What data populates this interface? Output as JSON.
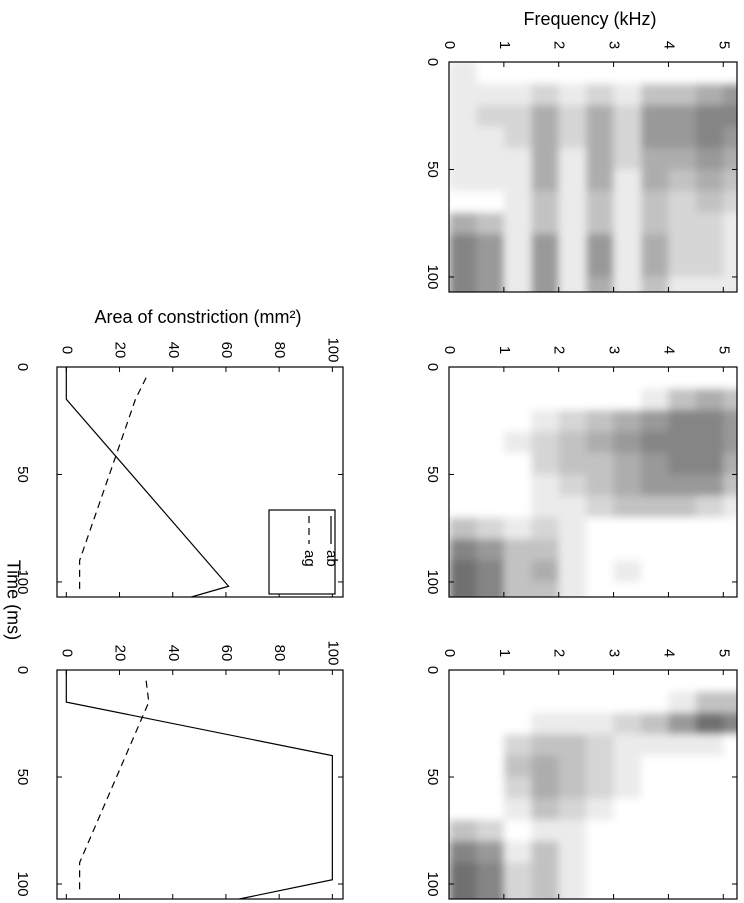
{
  "chart_data": [
    {
      "type": "heatmap",
      "ylabel": "Frequency (kHz)",
      "x": [
        5,
        15,
        25,
        35,
        45,
        55,
        65,
        75,
        85,
        95,
        105
      ],
      "y": [
        0.25,
        0.75,
        1.25,
        1.75,
        2.25,
        2.75,
        3.25,
        3.75,
        4.25,
        4.75,
        5.25
      ],
      "z": [
        [
          0.1,
          0,
          0,
          0,
          0,
          0,
          0,
          0,
          0,
          0,
          0
        ],
        [
          0.1,
          0.1,
          0.1,
          0.2,
          0.1,
          0.2,
          0.1,
          0.3,
          0.3,
          0.4,
          0.5
        ],
        [
          0.1,
          0.2,
          0.2,
          0.4,
          0.2,
          0.4,
          0.2,
          0.5,
          0.5,
          0.6,
          0.6
        ],
        [
          0.1,
          0.1,
          0.2,
          0.4,
          0.2,
          0.4,
          0.2,
          0.5,
          0.5,
          0.6,
          0.5
        ],
        [
          0.1,
          0.1,
          0.1,
          0.4,
          0.1,
          0.4,
          0.2,
          0.4,
          0.4,
          0.5,
          0.4
        ],
        [
          0.1,
          0.1,
          0.1,
          0.4,
          0.1,
          0.4,
          0.1,
          0.4,
          0.3,
          0.4,
          0.3
        ],
        [
          0,
          0,
          0.1,
          0.3,
          0.1,
          0.3,
          0.1,
          0.3,
          0.2,
          0.3,
          0.2
        ],
        [
          0.4,
          0.3,
          0.1,
          0.3,
          0.1,
          0.3,
          0.1,
          0.3,
          0.2,
          0.2,
          0.1
        ],
        [
          0.6,
          0.5,
          0.1,
          0.5,
          0.1,
          0.5,
          0.1,
          0.4,
          0.2,
          0.2,
          0.1
        ],
        [
          0.6,
          0.5,
          0.1,
          0.5,
          0.1,
          0.5,
          0.1,
          0.4,
          0.2,
          0.2,
          0.1
        ],
        [
          0.6,
          0.5,
          0.1,
          0.5,
          0.1,
          0.4,
          0.1,
          0.3,
          0.1,
          0.1,
          0.1
        ]
      ],
      "xlim": [
        0,
        107
      ],
      "xticks": [
        0,
        50,
        100
      ],
      "ylim": [
        0,
        5.25
      ],
      "yticks": [
        0,
        1,
        2,
        3,
        4,
        5
      ]
    },
    {
      "type": "heatmap",
      "x": [
        5,
        15,
        25,
        35,
        45,
        55,
        65,
        75,
        85,
        95,
        105
      ],
      "y": [
        0.25,
        0.75,
        1.25,
        1.75,
        2.25,
        2.75,
        3.25,
        3.75,
        4.25,
        4.75,
        5.25
      ],
      "z": [
        [
          0,
          0,
          0,
          0,
          0,
          0,
          0,
          0,
          0,
          0,
          0
        ],
        [
          0,
          0,
          0,
          0,
          0,
          0,
          0,
          0.1,
          0.3,
          0.4,
          0.3
        ],
        [
          0,
          0,
          0,
          0.1,
          0.2,
          0.3,
          0.4,
          0.5,
          0.6,
          0.6,
          0.5
        ],
        [
          0,
          0,
          0.1,
          0.2,
          0.3,
          0.4,
          0.5,
          0.6,
          0.6,
          0.6,
          0.5
        ],
        [
          0,
          0,
          0,
          0.2,
          0.3,
          0.3,
          0.4,
          0.5,
          0.6,
          0.6,
          0.4
        ],
        [
          0,
          0,
          0,
          0.1,
          0.2,
          0.3,
          0.4,
          0.5,
          0.5,
          0.5,
          0.3
        ],
        [
          0,
          0,
          0,
          0.1,
          0.1,
          0.2,
          0.3,
          0.3,
          0.3,
          0.2,
          0.1
        ],
        [
          0.3,
          0.2,
          0.1,
          0.2,
          0.1,
          0,
          0,
          0,
          0,
          0,
          0
        ],
        [
          0.6,
          0.5,
          0.3,
          0.3,
          0.1,
          0,
          0,
          0,
          0,
          0,
          0
        ],
        [
          0.7,
          0.6,
          0.3,
          0.4,
          0.1,
          0,
          0.1,
          0,
          0,
          0,
          0
        ],
        [
          0.7,
          0.6,
          0.3,
          0.3,
          0.1,
          0,
          0,
          0,
          0,
          0,
          0
        ]
      ],
      "xlim": [
        0,
        107
      ],
      "xticks": [
        0,
        50,
        100
      ],
      "ylim": [
        0,
        5.25
      ],
      "yticks": [
        0,
        1,
        2,
        3,
        4,
        5
      ]
    },
    {
      "type": "heatmap",
      "x": [
        5,
        15,
        25,
        35,
        45,
        55,
        65,
        75,
        85,
        95,
        105
      ],
      "y": [
        0.25,
        0.75,
        1.25,
        1.75,
        2.25,
        2.75,
        3.25,
        3.75,
        4.25,
        4.75,
        5.25
      ],
      "z": [
        [
          0,
          0,
          0,
          0,
          0,
          0,
          0,
          0,
          0,
          0,
          0
        ],
        [
          0,
          0,
          0,
          0,
          0,
          0,
          0,
          0,
          0.1,
          0.3,
          0.3
        ],
        [
          0,
          0,
          0,
          0.1,
          0.1,
          0.1,
          0.2,
          0.3,
          0.5,
          0.7,
          0.6
        ],
        [
          0,
          0,
          0.2,
          0.3,
          0.3,
          0.2,
          0.1,
          0.1,
          0.1,
          0.1,
          0
        ],
        [
          0,
          0,
          0.3,
          0.4,
          0.3,
          0.2,
          0.1,
          0,
          0,
          0,
          0
        ],
        [
          0,
          0,
          0.2,
          0.4,
          0.3,
          0.2,
          0.1,
          0,
          0,
          0,
          0
        ],
        [
          0,
          0,
          0.1,
          0.3,
          0.2,
          0.1,
          0,
          0,
          0,
          0,
          0
        ],
        [
          0.3,
          0.2,
          0,
          0.1,
          0.1,
          0,
          0,
          0,
          0,
          0,
          0
        ],
        [
          0.6,
          0.5,
          0.1,
          0.3,
          0.1,
          0,
          0,
          0,
          0,
          0,
          0
        ],
        [
          0.7,
          0.6,
          0.2,
          0.3,
          0.1,
          0,
          0,
          0,
          0,
          0,
          0
        ],
        [
          0.7,
          0.6,
          0.2,
          0.3,
          0.1,
          0,
          0,
          0,
          0,
          0,
          0
        ]
      ],
      "xlim": [
        0,
        107
      ],
      "xticks": [
        0,
        50,
        100
      ],
      "ylim": [
        0,
        5.25
      ],
      "yticks": [
        0,
        1,
        2,
        3,
        4,
        5
      ]
    },
    {
      "type": "line",
      "xlabel": "Time (ms)",
      "ylabel": "Area of constriction (mm²)",
      "legend": "upper right",
      "series": [
        {
          "name": "ag",
          "color": "#000000",
          "dash": "dashed",
          "x": [
            5,
            15,
            90,
            104
          ],
          "values": [
            30,
            26,
            5,
            5
          ]
        },
        {
          "name": "ab",
          "color": "#000000",
          "dash": "solid",
          "x": [
            0,
            15,
            102,
            107
          ],
          "values": [
            0,
            0,
            61,
            47
          ]
        }
      ],
      "xlim": [
        0,
        107
      ],
      "xticks": [
        0,
        50,
        100
      ],
      "ylim": [
        -3.5,
        104
      ],
      "yticks": [
        0,
        20,
        40,
        60,
        80,
        100
      ]
    },
    {
      "type": "line",
      "series": [
        {
          "color": "#000000",
          "dash": "dashed",
          "x": [
            5,
            15,
            90,
            104
          ],
          "values": [
            30,
            31,
            5,
            5
          ]
        },
        {
          "color": "#000000",
          "dash": "solid",
          "x": [
            0,
            15,
            40,
            98,
            107
          ],
          "values": [
            0,
            0,
            100,
            100,
            65
          ]
        }
      ],
      "xlim": [
        0,
        107
      ],
      "xticks": [
        0,
        50,
        100
      ],
      "ylim": [
        -3.5,
        104
      ],
      "yticks": [
        0,
        20,
        40,
        60,
        80,
        100
      ]
    }
  ]
}
